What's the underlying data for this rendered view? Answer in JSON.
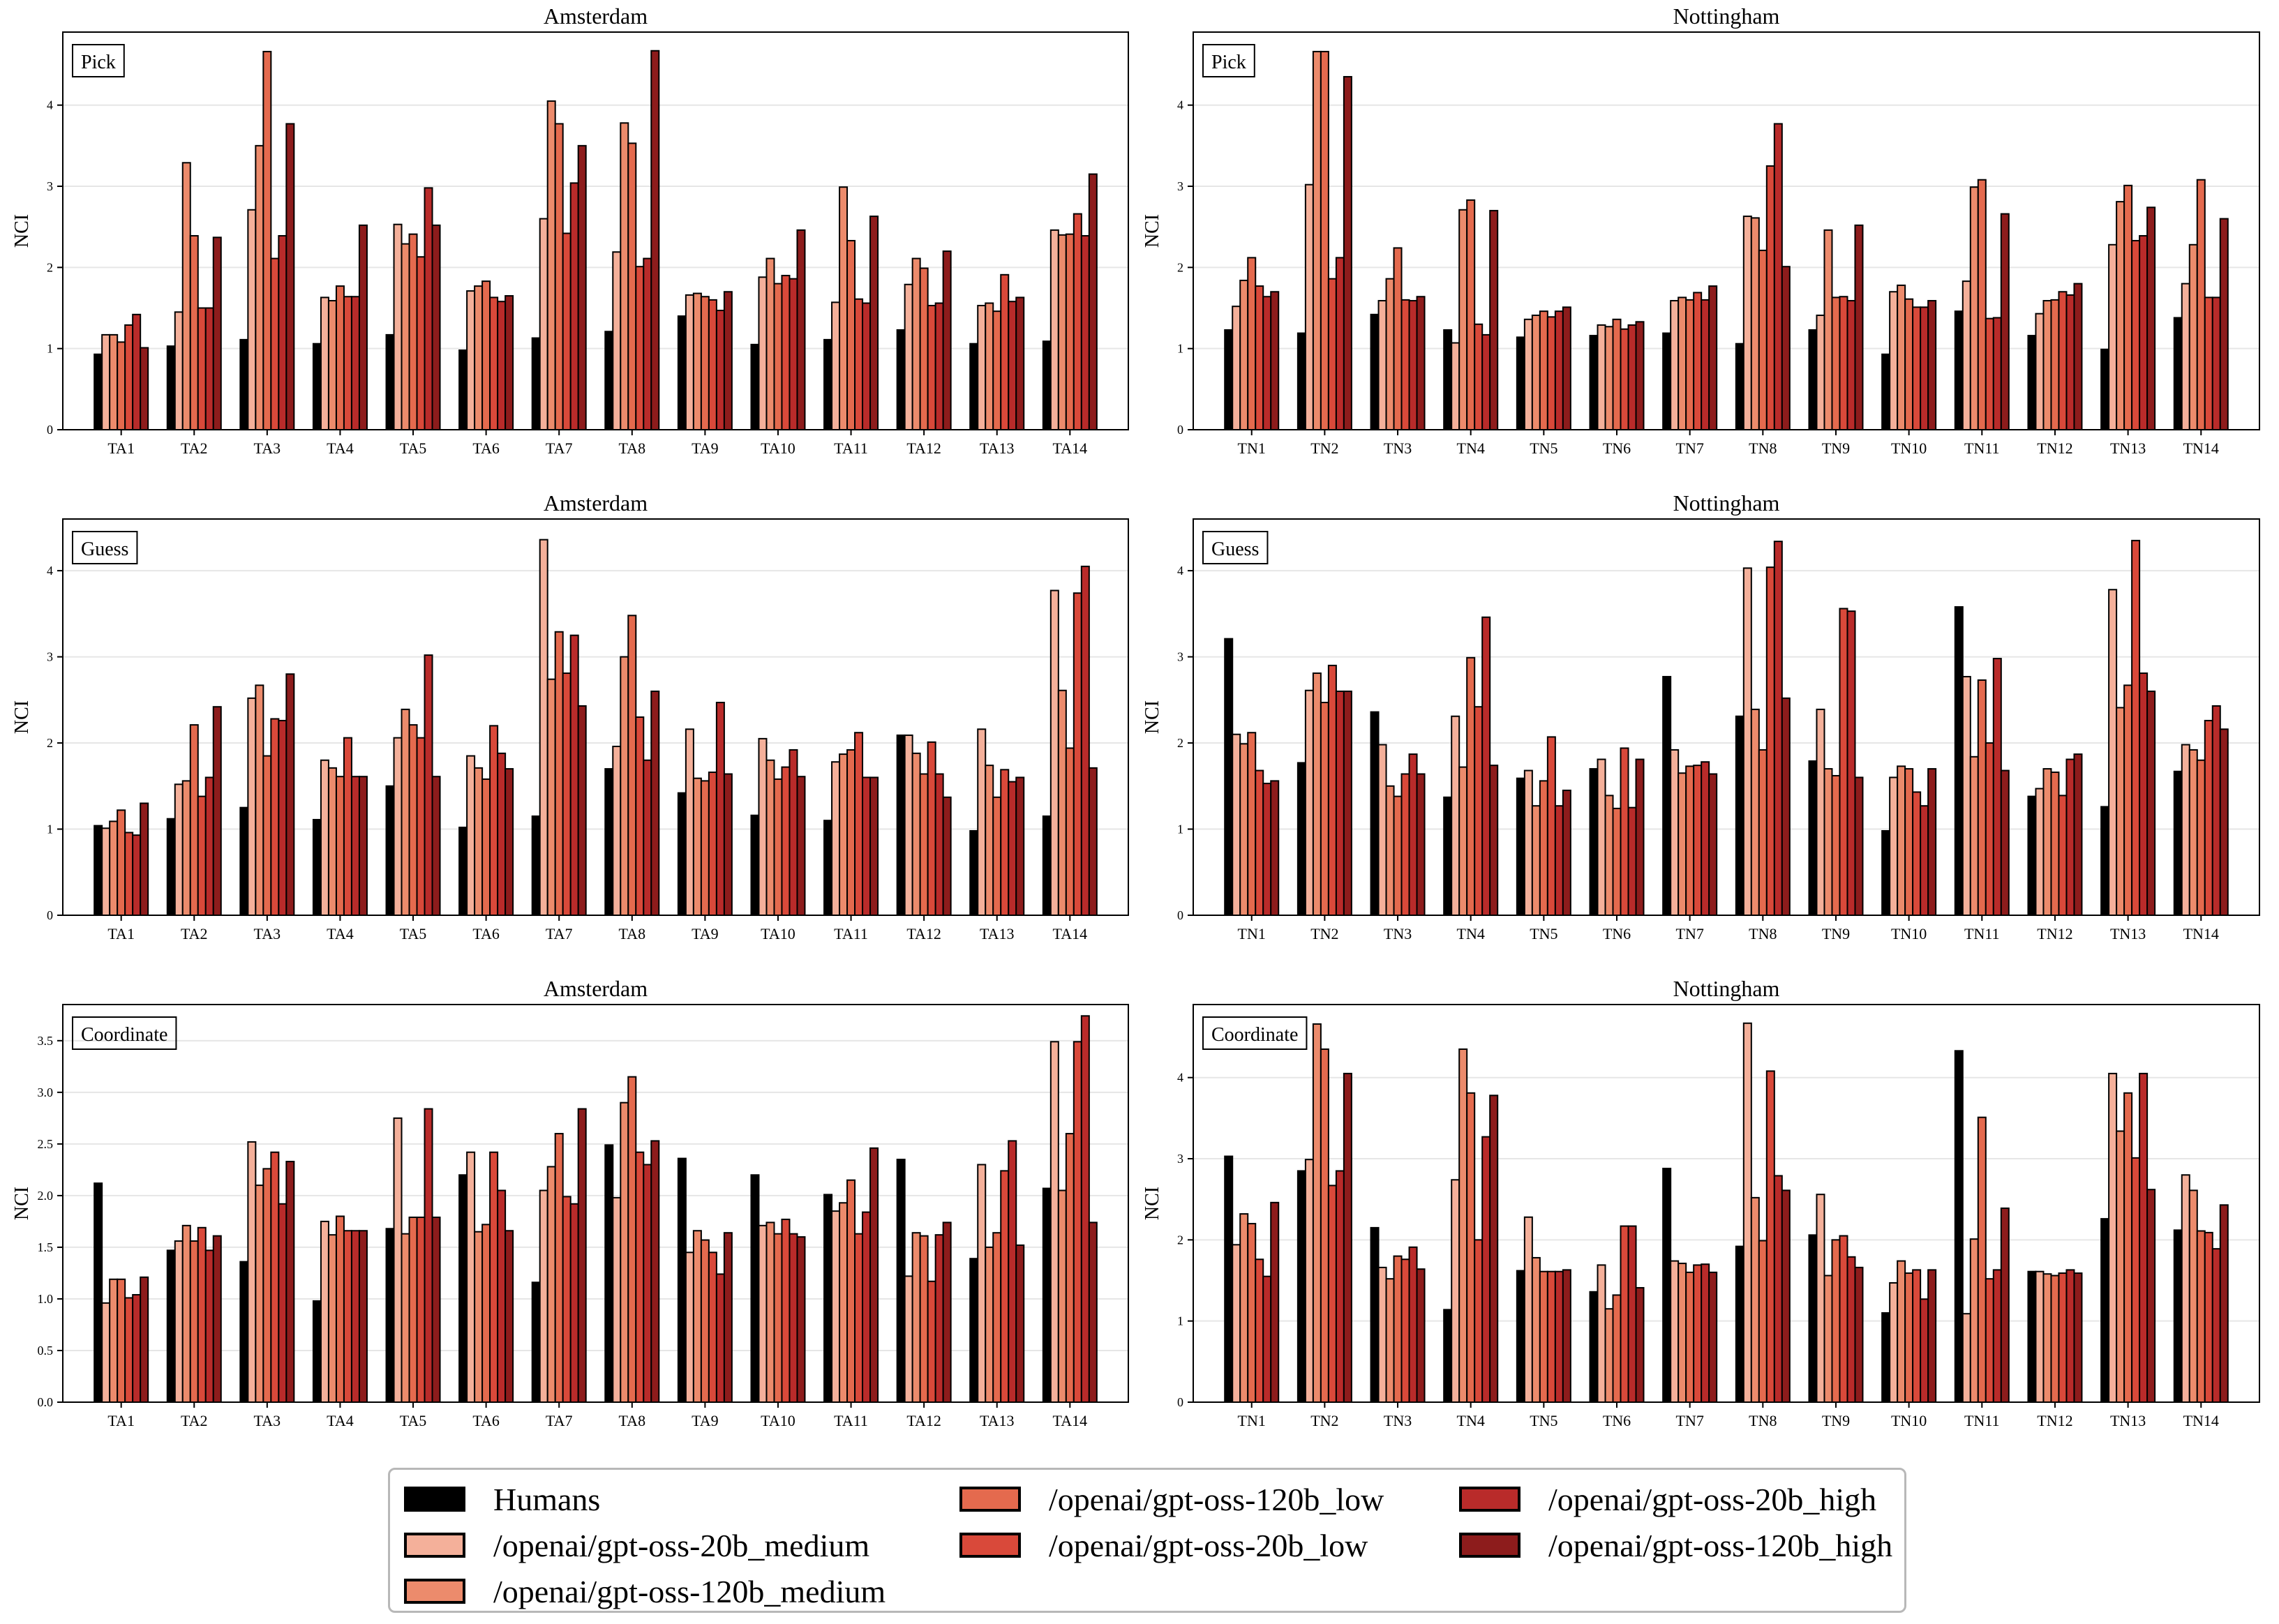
{
  "series": [
    {
      "name": "Humans",
      "color": "#000000"
    },
    {
      "name": "/openai/gpt-oss-20b_medium",
      "color": "#f4b09a"
    },
    {
      "name": "/openai/gpt-oss-120b_medium",
      "color": "#ec8b6c"
    },
    {
      "name": "/openai/gpt-oss-120b_low",
      "color": "#e46a4e"
    },
    {
      "name": "/openai/gpt-oss-20b_low",
      "color": "#d9493a"
    },
    {
      "name": "/openai/gpt-oss-20b_high",
      "color": "#b92b2a"
    },
    {
      "name": "/openai/gpt-oss-120b_high",
      "color": "#8d1c1c"
    }
  ],
  "chart_data": [
    {
      "type": "bar",
      "title": "Amsterdam",
      "tag": "Pick",
      "ylabel": "NCI",
      "ylim": [
        0,
        4.9
      ],
      "yticks": [
        "0",
        "1",
        "2",
        "3",
        "4"
      ],
      "categories": [
        "TA1",
        "TA2",
        "TA3",
        "TA4",
        "TA5",
        "TA6",
        "TA7",
        "TA8",
        "TA9",
        "TA10",
        "TA11",
        "TA12",
        "TA13",
        "TA14"
      ],
      "values": [
        [
          0.93,
          1.17,
          1.17,
          1.08,
          1.29,
          1.42,
          1.01
        ],
        [
          1.03,
          1.45,
          3.29,
          2.39,
          1.5,
          1.5,
          2.37
        ],
        [
          1.11,
          2.71,
          3.5,
          4.66,
          2.11,
          2.39,
          3.77
        ],
        [
          1.06,
          1.63,
          1.59,
          1.77,
          1.64,
          1.64,
          2.52
        ],
        [
          1.17,
          2.53,
          2.29,
          2.41,
          2.13,
          2.98,
          2.52
        ],
        [
          0.98,
          1.71,
          1.77,
          1.83,
          1.63,
          1.58,
          1.65
        ],
        [
          1.13,
          2.6,
          4.05,
          3.77,
          2.42,
          3.04,
          3.5
        ],
        [
          1.21,
          2.19,
          3.78,
          3.53,
          2.01,
          2.11,
          4.67
        ],
        [
          1.4,
          1.66,
          1.68,
          1.64,
          1.6,
          1.47,
          1.7
        ],
        [
          1.05,
          1.88,
          2.11,
          1.8,
          1.9,
          1.86,
          2.46
        ],
        [
          1.11,
          1.57,
          2.99,
          2.33,
          1.61,
          1.56,
          2.63
        ],
        [
          1.23,
          1.79,
          2.11,
          1.99,
          1.53,
          1.56,
          2.2
        ],
        [
          1.06,
          1.53,
          1.56,
          1.46,
          1.91,
          1.58,
          1.63
        ],
        [
          1.09,
          2.46,
          2.4,
          2.41,
          2.66,
          2.39,
          3.15
        ]
      ]
    },
    {
      "type": "bar",
      "title": "Nottingham",
      "tag": "Pick",
      "ylabel": "NCI",
      "ylim": [
        0,
        4.9
      ],
      "yticks": [
        "0",
        "1",
        "2",
        "3",
        "4"
      ],
      "categories": [
        "TN1",
        "TN2",
        "TN3",
        "TN4",
        "TN5",
        "TN6",
        "TN7",
        "TN8",
        "TN9",
        "TN10",
        "TN11",
        "TN12",
        "TN13",
        "TN14"
      ],
      "values": [
        [
          1.23,
          1.52,
          1.84,
          2.12,
          1.77,
          1.64,
          1.7
        ],
        [
          1.19,
          3.02,
          4.66,
          4.66,
          1.86,
          2.12,
          4.35
        ],
        [
          1.42,
          1.59,
          1.86,
          2.24,
          1.6,
          1.59,
          1.64
        ],
        [
          1.23,
          1.07,
          2.71,
          2.83,
          1.3,
          1.17,
          2.7
        ],
        [
          1.14,
          1.36,
          1.41,
          1.46,
          1.39,
          1.46,
          1.51
        ],
        [
          1.16,
          1.29,
          1.27,
          1.36,
          1.24,
          1.29,
          1.33
        ],
        [
          1.19,
          1.59,
          1.63,
          1.6,
          1.69,
          1.6,
          1.77
        ],
        [
          1.06,
          2.63,
          2.61,
          2.21,
          3.25,
          3.77,
          2.01
        ],
        [
          1.23,
          1.41,
          2.46,
          1.63,
          1.64,
          1.59,
          2.52
        ],
        [
          0.93,
          1.7,
          1.78,
          1.61,
          1.51,
          1.51,
          1.59
        ],
        [
          1.46,
          1.83,
          2.99,
          3.08,
          1.37,
          1.38,
          2.66
        ],
        [
          1.16,
          1.43,
          1.59,
          1.6,
          1.7,
          1.66,
          1.8
        ],
        [
          0.99,
          2.28,
          2.81,
          3.01,
          2.33,
          2.39,
          2.74
        ],
        [
          1.38,
          1.8,
          2.28,
          3.08,
          1.63,
          1.63,
          2.6
        ]
      ]
    },
    {
      "type": "bar",
      "title": "Amsterdam",
      "tag": "Guess",
      "ylabel": "NCI",
      "ylim": [
        0,
        4.6
      ],
      "yticks": [
        "0",
        "1",
        "2",
        "3",
        "4"
      ],
      "categories": [
        "TA1",
        "TA2",
        "TA3",
        "TA4",
        "TA5",
        "TA6",
        "TA7",
        "TA8",
        "TA9",
        "TA10",
        "TA11",
        "TA12",
        "TA13",
        "TA14"
      ],
      "values": [
        [
          1.04,
          1.01,
          1.09,
          1.22,
          0.96,
          0.93,
          1.3
        ],
        [
          1.12,
          1.52,
          1.56,
          2.21,
          1.38,
          1.6,
          2.42
        ],
        [
          1.25,
          2.52,
          2.67,
          1.85,
          2.28,
          2.26,
          2.8
        ],
        [
          1.11,
          1.8,
          1.71,
          1.61,
          2.06,
          1.61,
          1.61
        ],
        [
          1.5,
          2.06,
          2.39,
          2.21,
          2.06,
          3.02,
          1.61
        ],
        [
          1.02,
          1.85,
          1.71,
          1.58,
          2.2,
          1.88,
          1.7
        ],
        [
          1.15,
          4.36,
          2.74,
          3.29,
          2.81,
          3.25,
          2.43
        ],
        [
          1.7,
          1.96,
          3.0,
          3.48,
          2.3,
          1.8,
          2.6
        ],
        [
          1.42,
          2.16,
          1.59,
          1.56,
          1.66,
          2.47,
          1.64
        ],
        [
          1.16,
          2.05,
          1.8,
          1.58,
          1.72,
          1.92,
          1.61
        ],
        [
          1.1,
          1.78,
          1.87,
          1.92,
          2.12,
          1.6,
          1.6
        ],
        [
          2.09,
          2.09,
          1.88,
          1.64,
          2.01,
          1.64,
          1.37
        ],
        [
          0.98,
          2.16,
          1.74,
          1.37,
          1.69,
          1.55,
          1.6
        ],
        [
          1.15,
          3.77,
          2.61,
          1.94,
          3.74,
          4.05,
          1.71
        ]
      ]
    },
    {
      "type": "bar",
      "title": "Nottingham",
      "tag": "Guess",
      "ylabel": "NCI",
      "ylim": [
        0,
        4.6
      ],
      "yticks": [
        "0",
        "1",
        "2",
        "3",
        "4"
      ],
      "categories": [
        "TN1",
        "TN2",
        "TN3",
        "TN4",
        "TN5",
        "TN6",
        "TN7",
        "TN8",
        "TN9",
        "TN10",
        "TN11",
        "TN12",
        "TN13",
        "TN14"
      ],
      "values": [
        [
          3.21,
          2.1,
          1.99,
          2.12,
          1.68,
          1.53,
          1.56
        ],
        [
          1.77,
          2.61,
          2.81,
          2.47,
          2.9,
          2.6,
          2.6
        ],
        [
          2.36,
          1.98,
          1.5,
          1.38,
          1.64,
          1.87,
          1.64
        ],
        [
          1.37,
          2.31,
          1.72,
          2.99,
          2.42,
          3.46,
          1.74
        ],
        [
          1.59,
          1.68,
          1.27,
          1.56,
          2.07,
          1.27,
          1.45
        ],
        [
          1.7,
          1.81,
          1.39,
          1.24,
          1.94,
          1.25,
          1.81
        ],
        [
          2.77,
          1.92,
          1.65,
          1.73,
          1.74,
          1.78,
          1.64
        ],
        [
          2.31,
          4.03,
          2.39,
          1.92,
          4.04,
          4.34,
          2.52
        ],
        [
          1.79,
          2.39,
          1.7,
          1.62,
          3.56,
          3.53,
          1.6
        ],
        [
          0.98,
          1.6,
          1.73,
          1.7,
          1.43,
          1.27,
          1.7
        ],
        [
          3.58,
          2.77,
          1.84,
          2.73,
          2.0,
          2.98,
          1.68
        ],
        [
          1.38,
          1.47,
          1.7,
          1.66,
          1.39,
          1.81,
          1.87
        ],
        [
          1.26,
          3.78,
          2.41,
          2.67,
          4.35,
          2.81,
          2.6
        ],
        [
          1.67,
          1.98,
          1.92,
          1.8,
          2.26,
          2.43,
          2.16
        ]
      ]
    },
    {
      "type": "bar",
      "title": "Amsterdam",
      "tag": "Coordinate",
      "ylabel": "NCI",
      "ylim": [
        0,
        3.85
      ],
      "yticks": [
        "0.0",
        "0.5",
        "1.0",
        "1.5",
        "2.0",
        "2.5",
        "3.0",
        "3.5"
      ],
      "categories": [
        "TA1",
        "TA2",
        "TA3",
        "TA4",
        "TA5",
        "TA6",
        "TA7",
        "TA8",
        "TA9",
        "TA10",
        "TA11",
        "TA12",
        "TA13",
        "TA14"
      ],
      "values": [
        [
          2.12,
          0.96,
          1.19,
          1.19,
          1.01,
          1.04,
          1.21
        ],
        [
          1.47,
          1.56,
          1.71,
          1.56,
          1.69,
          1.47,
          1.61
        ],
        [
          1.36,
          2.52,
          2.1,
          2.26,
          2.42,
          1.92,
          2.33
        ],
        [
          0.98,
          1.75,
          1.62,
          1.8,
          1.66,
          1.66,
          1.66
        ],
        [
          1.68,
          2.75,
          1.63,
          1.79,
          1.79,
          2.84,
          1.79
        ],
        [
          2.2,
          2.42,
          1.65,
          1.72,
          2.42,
          2.05,
          1.66
        ],
        [
          1.16,
          2.05,
          2.28,
          2.6,
          1.99,
          1.92,
          2.84
        ],
        [
          2.49,
          1.98,
          2.9,
          3.15,
          2.42,
          2.3,
          2.53
        ],
        [
          2.36,
          1.45,
          1.66,
          1.57,
          1.45,
          1.24,
          1.64
        ],
        [
          2.2,
          1.71,
          1.74,
          1.63,
          1.77,
          1.63,
          1.6
        ],
        [
          2.01,
          1.85,
          1.93,
          2.15,
          1.63,
          1.84,
          2.46
        ],
        [
          2.35,
          1.22,
          1.64,
          1.61,
          1.17,
          1.62,
          1.74
        ],
        [
          1.39,
          2.3,
          1.5,
          1.64,
          2.24,
          2.53,
          1.52
        ],
        [
          2.07,
          3.49,
          2.05,
          2.6,
          3.49,
          3.74,
          1.74
        ]
      ]
    },
    {
      "type": "bar",
      "title": "Nottingham",
      "tag": "Coordinate",
      "ylabel": "NCI",
      "ylim": [
        0,
        4.9
      ],
      "yticks": [
        "0",
        "1",
        "2",
        "3",
        "4"
      ],
      "categories": [
        "TN1",
        "TN2",
        "TN3",
        "TN4",
        "TN5",
        "TN6",
        "TN7",
        "TN8",
        "TN9",
        "TN10",
        "TN11",
        "TN12",
        "TN13",
        "TN14"
      ],
      "values": [
        [
          3.03,
          1.94,
          2.32,
          2.2,
          1.76,
          1.55,
          2.46
        ],
        [
          2.85,
          2.99,
          4.66,
          4.35,
          2.67,
          2.85,
          4.05
        ],
        [
          2.15,
          1.66,
          1.52,
          1.8,
          1.76,
          1.91,
          1.64
        ],
        [
          1.14,
          2.74,
          4.35,
          3.81,
          2.0,
          3.27,
          3.78
        ],
        [
          1.62,
          2.28,
          1.78,
          1.61,
          1.61,
          1.61,
          1.63
        ],
        [
          1.36,
          1.69,
          1.15,
          1.32,
          2.17,
          2.17,
          1.41
        ],
        [
          2.88,
          1.74,
          1.71,
          1.6,
          1.69,
          1.7,
          1.6
        ],
        [
          1.92,
          4.67,
          2.52,
          1.99,
          4.08,
          2.79,
          2.61
        ],
        [
          2.06,
          2.56,
          1.56,
          2.0,
          2.05,
          1.79,
          1.66
        ],
        [
          1.1,
          1.47,
          1.74,
          1.59,
          1.63,
          1.27,
          1.63
        ],
        [
          4.33,
          1.09,
          2.01,
          3.51,
          1.52,
          1.63,
          2.39
        ],
        [
          1.61,
          1.61,
          1.58,
          1.56,
          1.59,
          1.63,
          1.59
        ],
        [
          2.26,
          4.05,
          3.34,
          3.81,
          3.01,
          4.05,
          2.62
        ],
        [
          2.12,
          2.8,
          2.61,
          2.11,
          2.09,
          1.89,
          2.43
        ]
      ]
    }
  ]
}
